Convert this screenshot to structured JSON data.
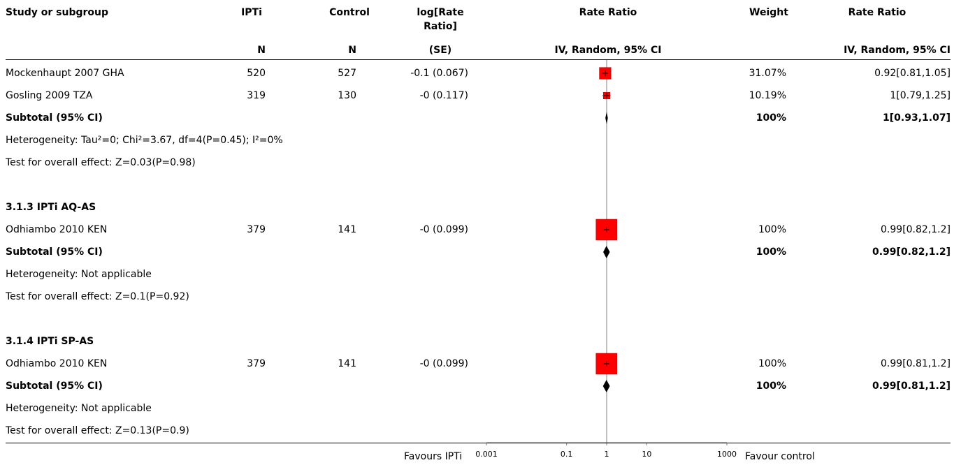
{
  "header": {
    "study": "Study or subgroup",
    "exp": "IPTi",
    "ctrl": "Control",
    "logrr_line1": "log[Rate",
    "logrr_line2": "Ratio]",
    "rr_plot": "Rate Ratio",
    "weight": "Weight",
    "rr_text": "Rate Ratio",
    "n_exp": "N",
    "n_ctrl": "N",
    "se": "(SE)",
    "plot_method": "IV, Random, 95% CI",
    "text_method": "IV, Random, 95% CI"
  },
  "rows": [
    {
      "kind": "study",
      "label": "Mockenhaupt 2007 GHA",
      "n1": "520",
      "n2": "527",
      "logse": "-0.1 (0.067)",
      "weight": "31.07%",
      "ci": "0.92[0.81,1.05]"
    },
    {
      "kind": "study",
      "label": "Gosling 2009 TZA",
      "n1": "319",
      "n2": "130",
      "logse": "-0 (0.117)",
      "weight": "10.19%",
      "ci": "1[0.79,1.25]"
    },
    {
      "kind": "subtotal",
      "label": "Subtotal (95% CI)",
      "weight": "100%",
      "ci": "1[0.93,1.07]"
    },
    {
      "kind": "note",
      "label": "Heterogeneity: Tau²=0; Chi²=3.67, df=4(P=0.45); I²=0%"
    },
    {
      "kind": "note",
      "label": "Test for overall effect: Z=0.03(P=0.98)"
    },
    {
      "kind": "blank",
      "label": ""
    },
    {
      "kind": "group",
      "label": "3.1.3 IPTi AQ-AS"
    },
    {
      "kind": "study",
      "label": "Odhiambo 2010 KEN",
      "n1": "379",
      "n2": "141",
      "logse": "-0 (0.099)",
      "weight": "100%",
      "ci": "0.99[0.82,1.2]"
    },
    {
      "kind": "subtotal",
      "label": "Subtotal (95% CI)",
      "weight": "100%",
      "ci": "0.99[0.82,1.2]"
    },
    {
      "kind": "note",
      "label": "Heterogeneity: Not applicable"
    },
    {
      "kind": "note",
      "label": "Test for overall effect: Z=0.1(P=0.92)"
    },
    {
      "kind": "blank",
      "label": ""
    },
    {
      "kind": "group",
      "label": "3.1.4 IPTi SP-AS"
    },
    {
      "kind": "study",
      "label": "Odhiambo 2010 KEN",
      "n1": "379",
      "n2": "141",
      "logse": "-0 (0.099)",
      "weight": "100%",
      "ci": "0.99[0.81,1.2]"
    },
    {
      "kind": "subtotal",
      "label": "Subtotal (95% CI)",
      "weight": "100%",
      "ci": "0.99[0.81,1.2]"
    },
    {
      "kind": "note",
      "label": "Heterogeneity: Not applicable"
    },
    {
      "kind": "note",
      "label": "Test for overall effect: Z=0.13(P=0.9)"
    }
  ],
  "footer": {
    "favours_left": "Favours IPTi",
    "favours_right": "Favour control"
  },
  "chart_data": {
    "type": "forest",
    "xscale": "log",
    "xlim": [
      0.001,
      1000
    ],
    "ticks": [
      0.001,
      0.1,
      1,
      10,
      1000
    ],
    "tick_labels": [
      "0.001",
      "0.1",
      "1",
      "10",
      "1000"
    ],
    "colors": {
      "study_box": "#ff0000",
      "study_box_outline": "#b30000",
      "diamond": "#000000",
      "axis": "#808080"
    },
    "studies": [
      {
        "row": 0,
        "name": "Mockenhaupt 2007 GHA",
        "rr": 0.92,
        "lo": 0.81,
        "hi": 1.05,
        "weight": 31.07
      },
      {
        "row": 1,
        "name": "Gosling 2009 TZA",
        "rr": 1.0,
        "lo": 0.79,
        "hi": 1.25,
        "weight": 10.19
      },
      {
        "row": 7,
        "name": "Odhiambo 2010 KEN",
        "rr": 0.99,
        "lo": 0.82,
        "hi": 1.2,
        "weight": 100
      },
      {
        "row": 13,
        "name": "Odhiambo 2010 KEN",
        "rr": 0.99,
        "lo": 0.81,
        "hi": 1.2,
        "weight": 100
      }
    ],
    "subtotals": [
      {
        "row": 2,
        "rr": 1.0,
        "lo": 0.93,
        "hi": 1.07
      },
      {
        "row": 8,
        "rr": 0.99,
        "lo": 0.82,
        "hi": 1.2
      },
      {
        "row": 14,
        "rr": 0.99,
        "lo": 0.81,
        "hi": 1.2
      }
    ]
  }
}
